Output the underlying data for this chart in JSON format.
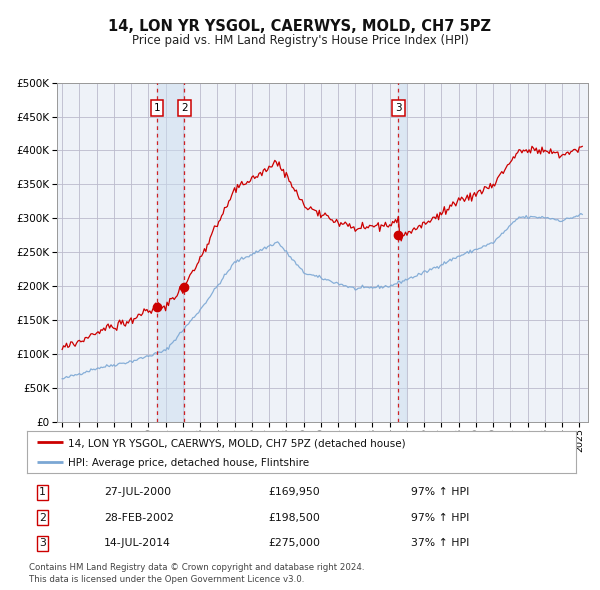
{
  "title": "14, LON YR YSGOL, CAERWYS, MOLD, CH7 5PZ",
  "subtitle": "Price paid vs. HM Land Registry's House Price Index (HPI)",
  "legend_line1": "14, LON YR YSGOL, CAERWYS, MOLD, CH7 5PZ (detached house)",
  "legend_line2": "HPI: Average price, detached house, Flintshire",
  "footer1": "Contains HM Land Registry data © Crown copyright and database right 2024.",
  "footer2": "This data is licensed under the Open Government Licence v3.0.",
  "rows": [
    [
      "1",
      "27-JUL-2000",
      "£169,950",
      "97% ↑ HPI"
    ],
    [
      "2",
      "28-FEB-2002",
      "£198,500",
      "97% ↑ HPI"
    ],
    [
      "3",
      "14-JUL-2014",
      "£275,000",
      "37% ↑ HPI"
    ]
  ],
  "hpi_color": "#7ba7d4",
  "price_color": "#cc0000",
  "dot_color": "#cc0000",
  "vline_color": "#cc0000",
  "shade_color": "#ccddf0",
  "grid_color": "#bbbbcc",
  "bg_color": "#ffffff",
  "plot_bg": "#eef2f8",
  "ylim": [
    0,
    500000
  ],
  "yticks": [
    0,
    50000,
    100000,
    150000,
    200000,
    250000,
    300000,
    350000,
    400000,
    450000,
    500000
  ],
  "xlim_start": 1994.7,
  "xlim_end": 2025.5,
  "xticks": [
    1995,
    1996,
    1997,
    1998,
    1999,
    2000,
    2001,
    2002,
    2003,
    2004,
    2005,
    2006,
    2007,
    2008,
    2009,
    2010,
    2011,
    2012,
    2013,
    2014,
    2015,
    2016,
    2017,
    2018,
    2019,
    2020,
    2021,
    2022,
    2023,
    2024,
    2025
  ]
}
